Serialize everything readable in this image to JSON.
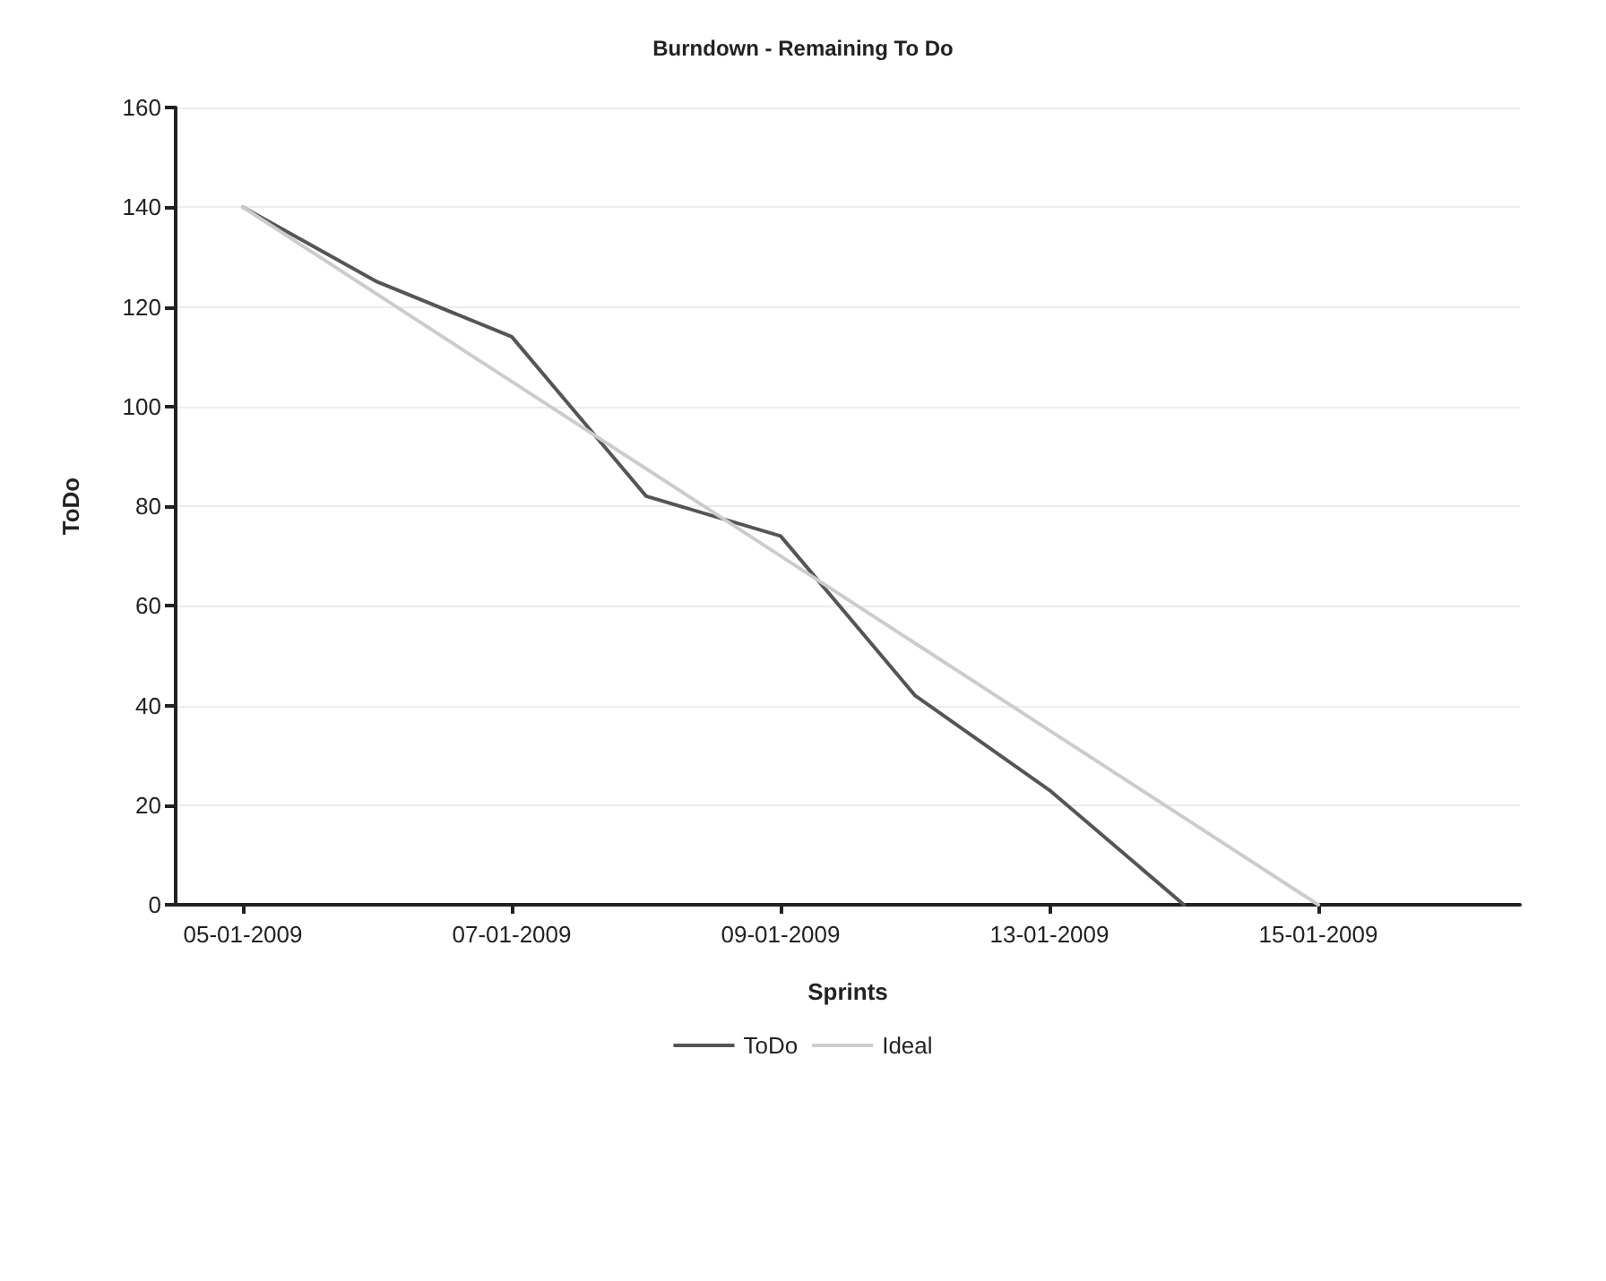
{
  "chart_data": {
    "type": "line",
    "title": "Burndown - Remaining To Do",
    "xlabel": "Sprints",
    "ylabel": "ToDo",
    "categories": [
      "05-01-2009",
      null,
      "07-01-2009",
      null,
      "09-01-2009",
      null,
      "13-01-2009",
      null,
      "15-01-2009",
      null
    ],
    "series": [
      {
        "name": "ToDo",
        "color": "#555555",
        "values": [
          140,
          125,
          114,
          82,
          74,
          42,
          23,
          0,
          null,
          null
        ]
      },
      {
        "name": "Ideal",
        "color": "#cccccc",
        "values": [
          140,
          122.5,
          105,
          87.5,
          70,
          52.5,
          35,
          17.5,
          0,
          null
        ]
      }
    ],
    "ylim": [
      0,
      160
    ],
    "yticks": [
      0,
      20,
      40,
      60,
      80,
      100,
      120,
      140,
      160
    ],
    "grid": "y",
    "legend": "bottom",
    "marker": "none",
    "line_style": "solid"
  }
}
